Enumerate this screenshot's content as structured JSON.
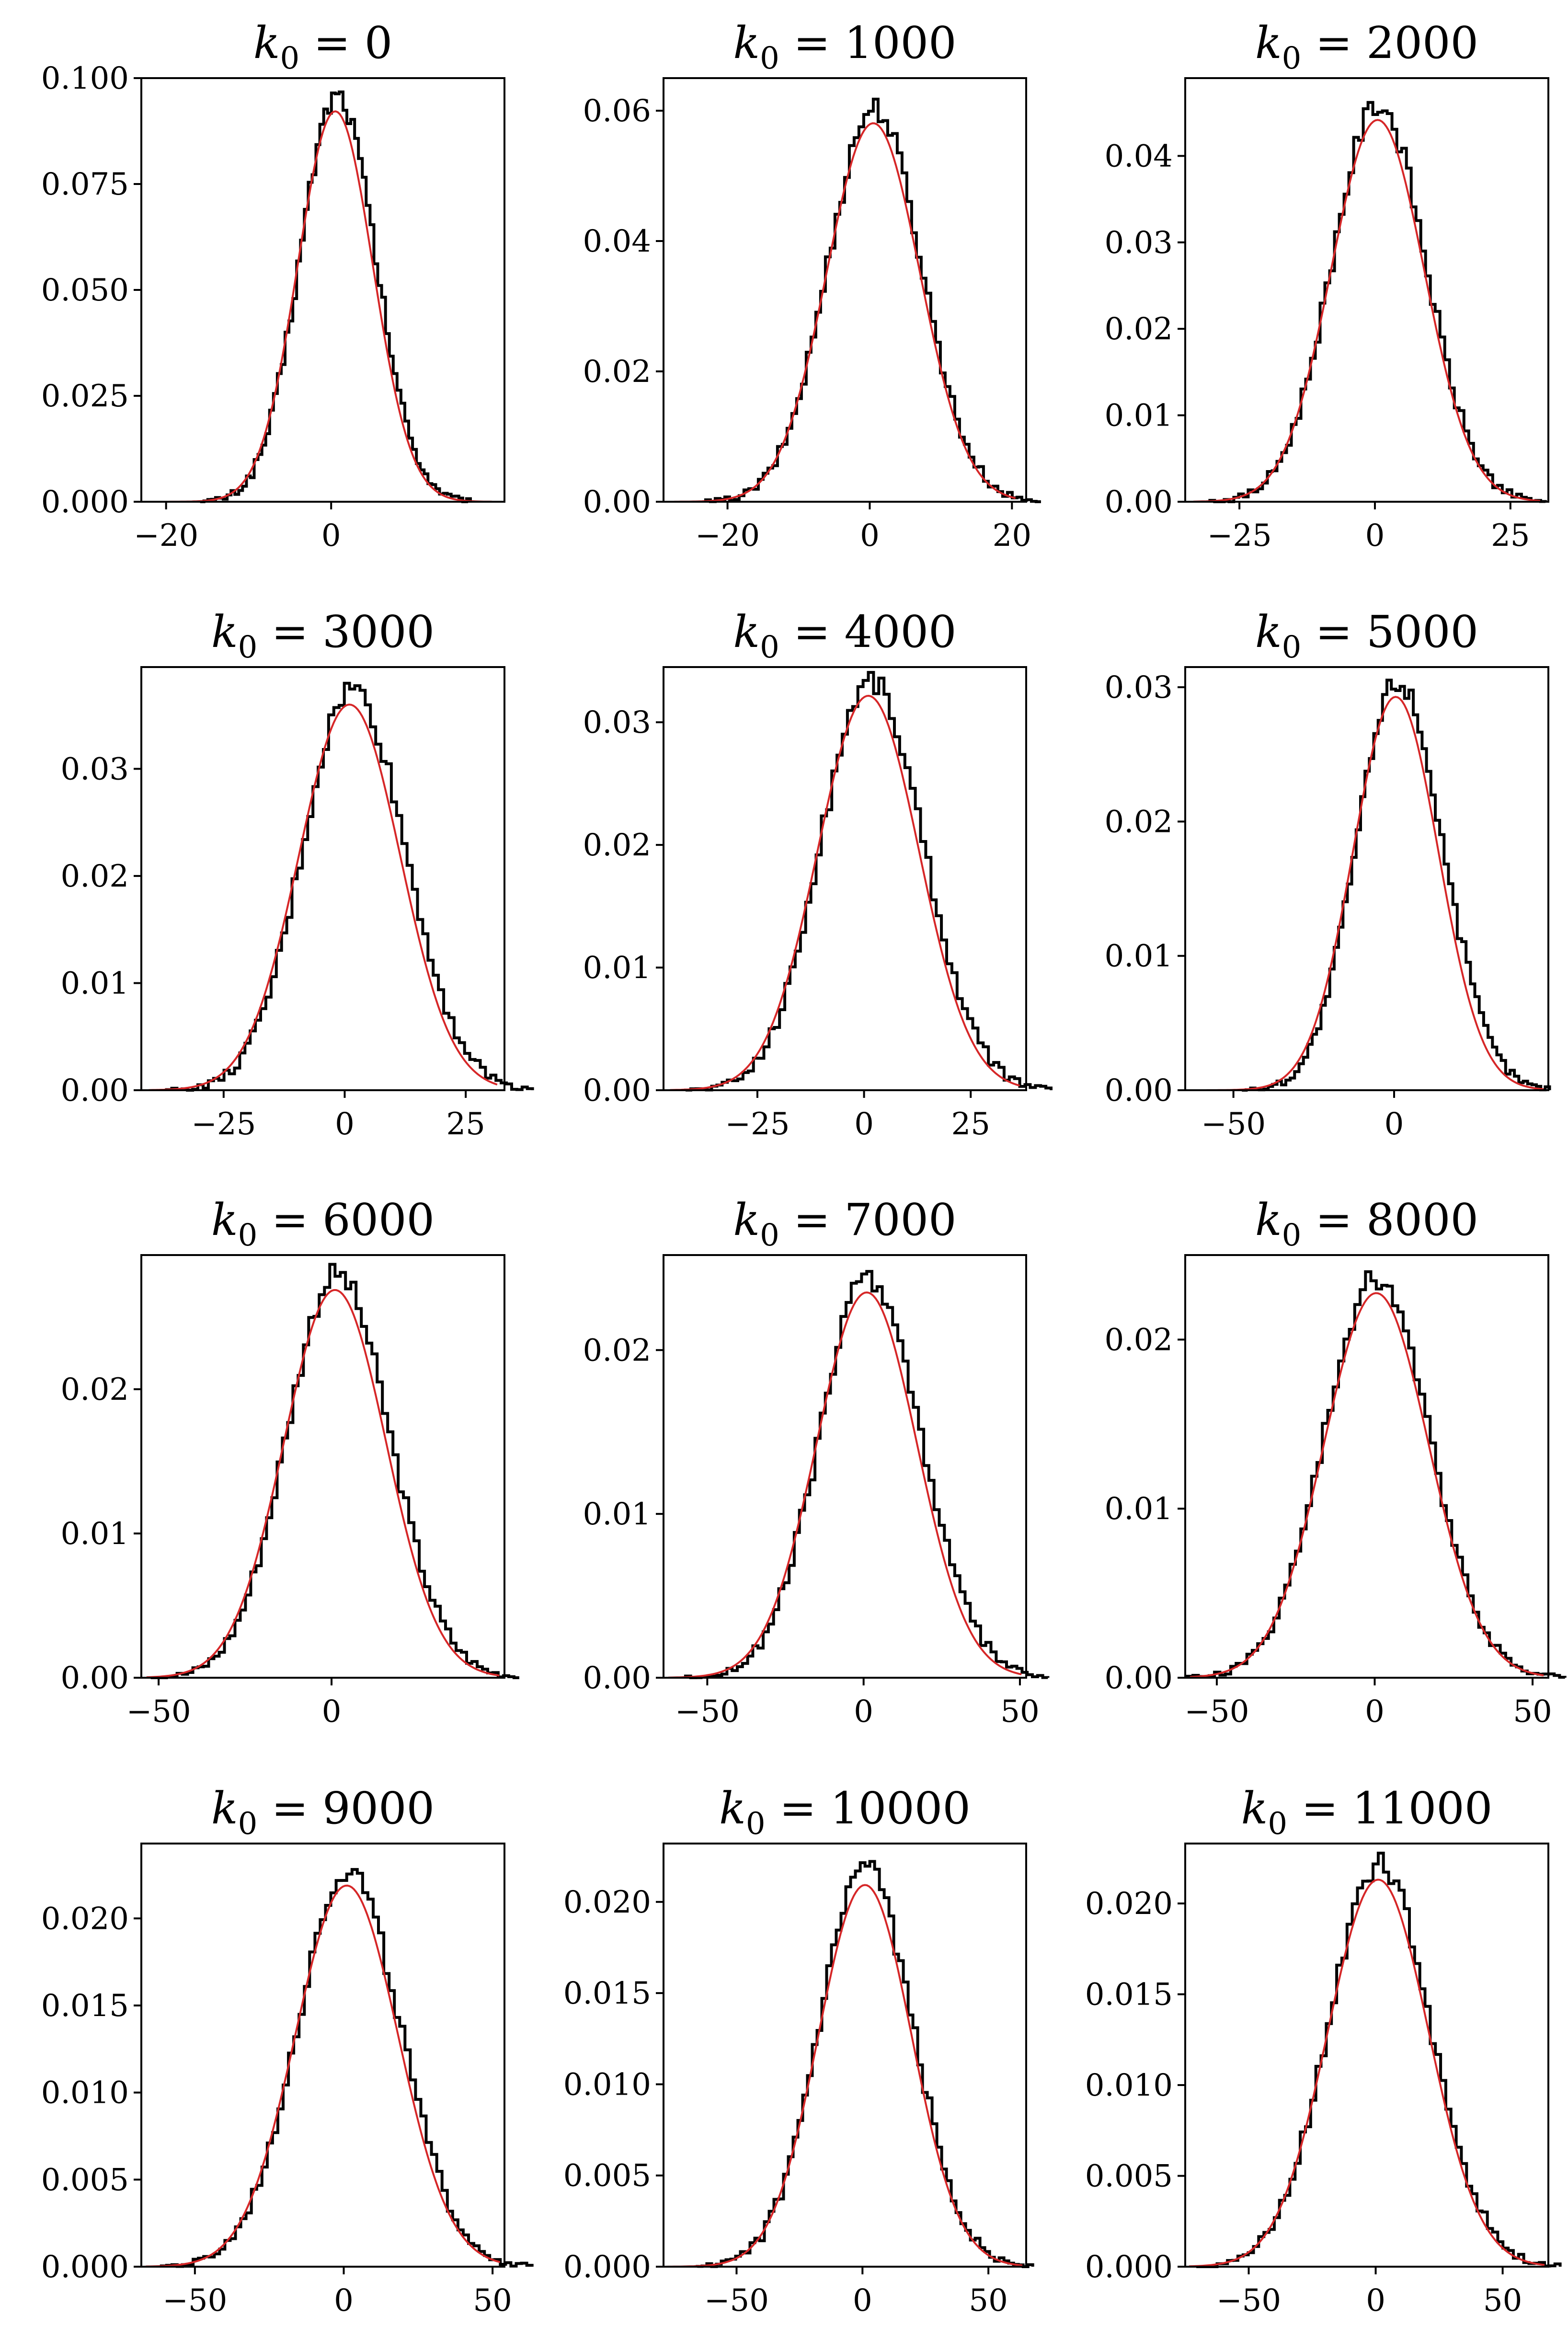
{
  "chart_data": [
    {
      "type": "histogram",
      "title_base": "k",
      "title_sub": "0",
      "title_value": "0",
      "xlim": [
        -23,
        21
      ],
      "ylim": [
        0,
        0.1
      ],
      "xticks": [
        -20,
        0
      ],
      "yticks": [
        "0.000",
        "0.025",
        "0.050",
        "0.075",
        "0.100"
      ],
      "mu": 0.5,
      "sigma": 4.55,
      "peak": 0.096,
      "skew": 0.25
    },
    {
      "type": "histogram",
      "title_base": "k",
      "title_sub": "0",
      "title_value": "1000",
      "xlim": [
        -29,
        22
      ],
      "ylim": [
        0,
        0.065
      ],
      "xticks": [
        -20,
        0,
        20
      ],
      "yticks": [
        "0.00",
        "0.02",
        "0.04",
        "0.06"
      ],
      "mu": 0.5,
      "sigma": 6.55,
      "peak": 0.0605,
      "skew": 0.15
    },
    {
      "type": "histogram",
      "title_base": "k",
      "title_sub": "0",
      "title_value": "2000",
      "xlim": [
        -35,
        32
      ],
      "ylim": [
        0,
        0.049
      ],
      "xticks": [
        -25,
        0,
        25
      ],
      "yticks": [
        "0.00",
        "0.01",
        "0.02",
        "0.03",
        "0.04"
      ],
      "mu": 0.5,
      "sigma": 8.6,
      "peak": 0.046,
      "skew": 0.15
    },
    {
      "type": "histogram",
      "title_base": "k",
      "title_sub": "0",
      "title_value": "3000",
      "xlim": [
        -42,
        33
      ],
      "ylim": [
        0,
        0.0395
      ],
      "xticks": [
        -25,
        0,
        25
      ],
      "yticks": [
        "0.00",
        "0.01",
        "0.02",
        "0.03"
      ],
      "mu": 1,
      "sigma": 10.5,
      "peak": 0.0375,
      "skew": 0.6
    },
    {
      "type": "histogram",
      "title_base": "k",
      "title_sub": "0",
      "title_value": "4000",
      "xlim": [
        -47,
        38
      ],
      "ylim": [
        0,
        0.0345
      ],
      "xticks": [
        -25,
        0,
        25
      ],
      "yticks": [
        "0.00",
        "0.01",
        "0.02",
        "0.03"
      ],
      "mu": 1,
      "sigma": 11.9,
      "peak": 0.0335,
      "skew": 0.5
    },
    {
      "type": "histogram",
      "title_base": "k",
      "title_sub": "0",
      "title_value": "5000",
      "xlim": [
        -65,
        48
      ],
      "ylim": [
        0,
        0.0315
      ],
      "xticks": [
        -50,
        0
      ],
      "yticks": [
        "0.00",
        "0.01",
        "0.02",
        "0.03"
      ],
      "mu": 0.5,
      "sigma": 13.3,
      "peak": 0.0305,
      "skew": 0.7
    },
    {
      "type": "histogram",
      "title_base": "k",
      "title_sub": "0",
      "title_value": "6000",
      "xlim": [
        -55,
        50
      ],
      "ylim": [
        0,
        0.0293
      ],
      "xticks": [
        -50,
        0
      ],
      "yticks": [
        "0.00",
        "0.01",
        "0.02"
      ],
      "mu": 1,
      "sigma": 14.8,
      "peak": 0.028,
      "skew": 0.5
    },
    {
      "type": "histogram",
      "title_base": "k",
      "title_sub": "0",
      "title_value": "7000",
      "xlim": [
        -64,
        52
      ],
      "ylim": [
        0,
        0.0258
      ],
      "xticks": [
        -50,
        0,
        50
      ],
      "yticks": [
        "0.00",
        "0.01",
        "0.02"
      ],
      "mu": 1,
      "sigma": 16.1,
      "peak": 0.0245,
      "skew": 0.6
    },
    {
      "type": "histogram",
      "title_base": "k",
      "title_sub": "0",
      "title_value": "8000",
      "xlim": [
        -60,
        55
      ],
      "ylim": [
        0,
        0.025
      ],
      "xticks": [
        -50,
        0,
        50
      ],
      "yticks": [
        "0.00",
        "0.01",
        "0.02"
      ],
      "mu": 0.5,
      "sigma": 16.6,
      "peak": 0.0237,
      "skew": 0.15
    },
    {
      "type": "histogram",
      "title_base": "k",
      "title_sub": "0",
      "title_value": "9000",
      "xlim": [
        -68,
        54
      ],
      "ylim": [
        0,
        0.0243
      ],
      "xticks": [
        -50,
        0,
        50
      ],
      "yticks": [
        "0.000",
        "0.005",
        "0.010",
        "0.015",
        "0.020"
      ],
      "mu": 1,
      "sigma": 17.3,
      "peak": 0.0228,
      "skew": 0.35
    },
    {
      "type": "histogram",
      "title_base": "k",
      "title_sub": "0",
      "title_value": "10000",
      "xlim": [
        -79,
        65
      ],
      "ylim": [
        0,
        0.0232
      ],
      "xticks": [
        -50,
        0,
        50
      ],
      "yticks": [
        "0.000",
        "0.005",
        "0.010",
        "0.015",
        "0.020"
      ],
      "mu": 1,
      "sigma": 18.5,
      "peak": 0.0218,
      "skew": 0.25
    },
    {
      "type": "histogram",
      "title_base": "k",
      "title_sub": "0",
      "title_value": "11000",
      "xlim": [
        -75,
        68
      ],
      "ylim": [
        0,
        0.0233
      ],
      "xticks": [
        -50,
        0,
        50
      ],
      "yticks": [
        "0.000",
        "0.005",
        "0.010",
        "0.015",
        "0.020"
      ],
      "mu": 1,
      "sigma": 19.9,
      "peak": 0.0222,
      "skew": 0.25
    }
  ]
}
